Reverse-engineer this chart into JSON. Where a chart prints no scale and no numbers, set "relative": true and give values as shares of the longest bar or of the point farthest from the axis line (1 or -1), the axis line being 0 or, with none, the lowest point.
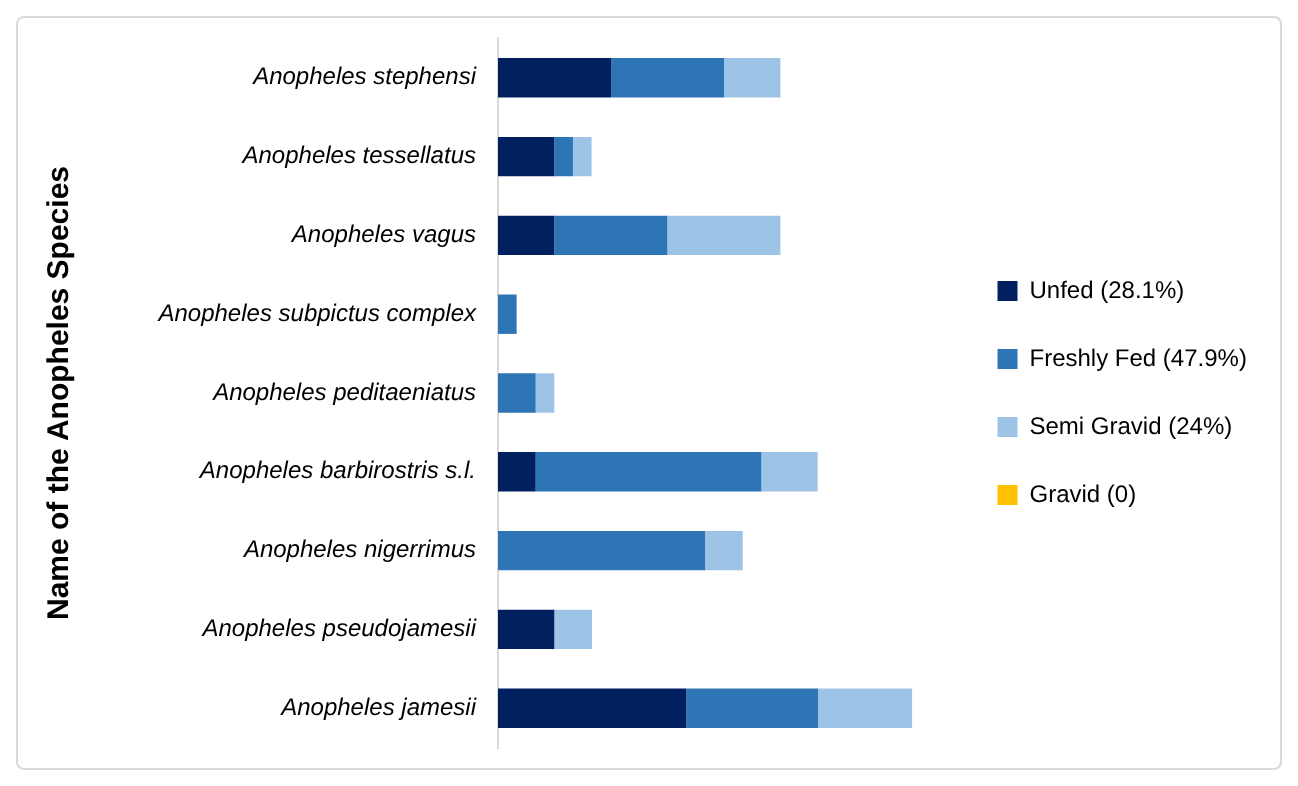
{
  "chart_data": {
    "type": "bar",
    "orientation": "horizontal",
    "stacked": true,
    "relative": true,
    "legend": "right",
    "ylabel": "Name of the Anopheles Species",
    "categories": [
      "Anopheles stephensi",
      "Anopheles tessellatus",
      "Anopheles vagus",
      "Anopheles subpictus complex",
      "Anopheles peditaeniatus",
      "Anopheles barbirostris s.l.",
      "Anopheles nigerrimus",
      "Anopheles pseudojamesii",
      "Anopheles jamesii"
    ],
    "series": [
      {
        "name": "Unfed (28.1%)",
        "color": "#002060",
        "values": [
          0.273,
          0.136,
          0.136,
          0,
          0,
          0.091,
          0,
          0.136,
          0.455
        ]
      },
      {
        "name": "Freshly Fed (47.9%)",
        "color": "#2e75b6",
        "values": [
          0.273,
          0.045,
          0.273,
          0.045,
          0.091,
          0.545,
          0.5,
          0,
          0.318
        ]
      },
      {
        "name": "Semi Gravid (24%)",
        "color": "#9dc3e6",
        "values": [
          0.136,
          0.045,
          0.273,
          0,
          0.045,
          0.136,
          0.091,
          0.091,
          0.227
        ]
      },
      {
        "name": "Gravid (0)",
        "color": "#ffc000",
        "values": [
          0,
          0,
          0,
          0,
          0,
          0,
          0,
          0,
          0
        ]
      }
    ]
  }
}
